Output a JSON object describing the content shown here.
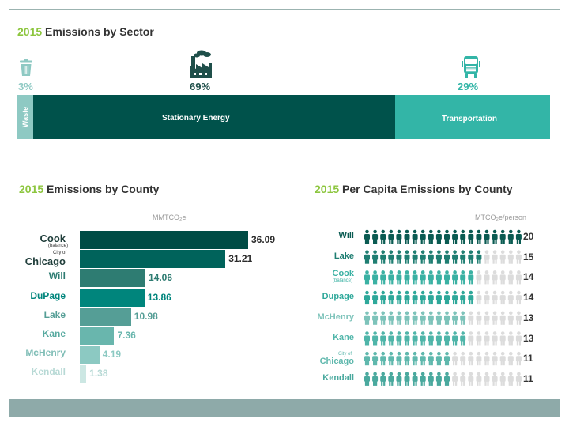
{
  "sector": {
    "title_year": "2015",
    "title_text": "Emissions by Sector"
  },
  "county": {
    "title_year": "2015",
    "title_text": "Emissions by County",
    "unit": "MMTCO₂e"
  },
  "per_capita": {
    "title_year": "2015",
    "title_text": "Per Capita Emissions by County",
    "unit": "MTCO₂e/person"
  },
  "colors": {
    "accent_green": "#8dc63f",
    "dark_teal": "#00524b",
    "teal": "#33b5a7",
    "light_teal": "#8ec9c3",
    "icon_inactive": "#dcdcdc"
  },
  "chart_data": [
    {
      "type": "bar",
      "orientation": "horizontal-stacked",
      "title": "2015 Emissions by Sector",
      "categories": [
        "Waste",
        "Stationary Energy",
        "Transportation"
      ],
      "values": [
        3,
        69,
        29
      ],
      "value_labels": [
        "3%",
        "69%",
        "29%"
      ],
      "icons": [
        "trash-can-icon",
        "factory-icon",
        "truck-icon"
      ]
    },
    {
      "type": "bar",
      "orientation": "horizontal",
      "title": "2015 Emissions by County",
      "unit": "MMTCO₂e",
      "categories": [
        {
          "name": "Cook",
          "sub_below": "(balance)"
        },
        {
          "name": "Chicago",
          "sub_above": "City of"
        },
        {
          "name": "Will"
        },
        {
          "name": "DuPage"
        },
        {
          "name": "Lake"
        },
        {
          "name": "Kane"
        },
        {
          "name": "McHenry"
        },
        {
          "name": "Kendall"
        }
      ],
      "values": [
        36.09,
        31.21,
        14.06,
        13.86,
        10.98,
        7.36,
        4.19,
        1.38
      ],
      "value_labels": [
        "36.09",
        "31.21",
        "14.06",
        "13.86",
        "10.98",
        "7.36",
        "4.19",
        "1.38"
      ],
      "colors": [
        "#004c45",
        "#00635b",
        "#2e7c72",
        "#00857c",
        "#559e96",
        "#69b6ad",
        "#8cc9c2",
        "#cce7e3"
      ],
      "xlim": [
        0,
        36.09
      ]
    },
    {
      "type": "bar",
      "orientation": "pictograph",
      "title": "2015 Per Capita Emissions by County",
      "unit": "MTCO₂e/person",
      "icons_total": 20,
      "categories": [
        {
          "name": "Will"
        },
        {
          "name": "Lake"
        },
        {
          "name": "Cook",
          "sub_below": "(balance)"
        },
        {
          "name": "Dupage"
        },
        {
          "name": "McHenry"
        },
        {
          "name": "Kane"
        },
        {
          "name": "Chicago",
          "sub_above": "City of"
        },
        {
          "name": "Kendall"
        }
      ],
      "values": [
        20,
        15,
        14,
        14,
        13,
        13,
        11,
        11
      ],
      "value_labels": [
        "20",
        "15",
        "14",
        "14",
        "13",
        "13",
        "11",
        "11"
      ],
      "colors": [
        "#0a5b52",
        "#1f7e72",
        "#3ab1a3",
        "#2ea89a",
        "#7dc3ba",
        "#4fb5a9",
        "#5fb8ad",
        "#4aa99e"
      ]
    }
  ]
}
